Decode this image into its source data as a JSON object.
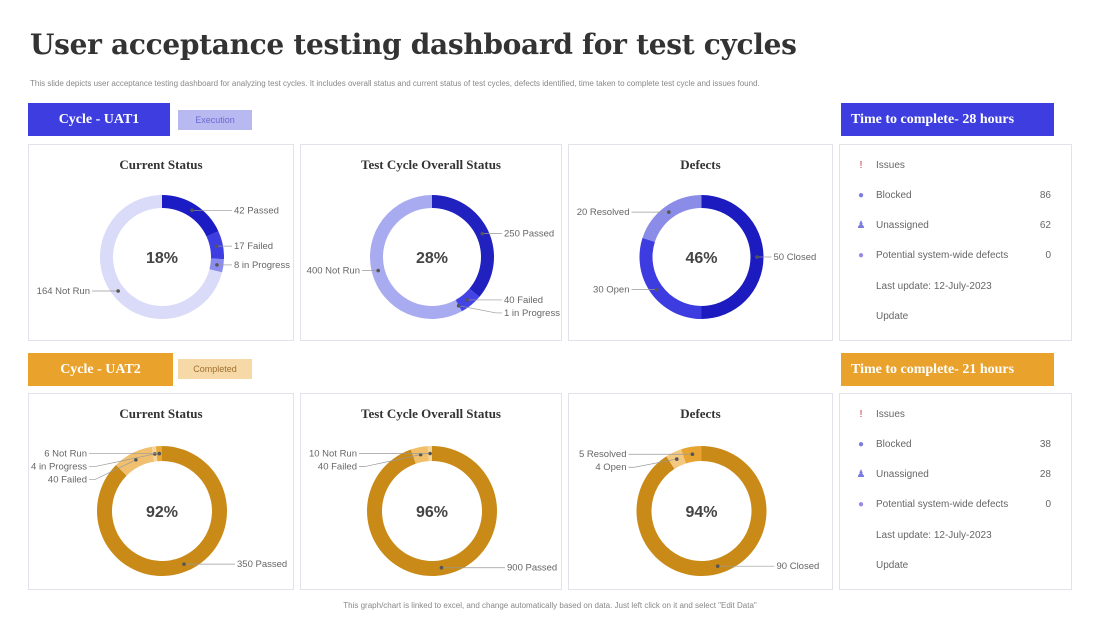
{
  "title": "User acceptance testing dashboard for test cycles",
  "subtitle": "This slide depicts user acceptance testing dashboard for analyzing test cycles. It includes overall status and current status of test cycles, defects identified, time taken to complete test cycle and issues found.",
  "footer": "This graph/chart is linked to excel, and change automatically based on data. Just left click on it and select \"Edit Data\"",
  "colors": {
    "blue": "#3e3ee0",
    "blue_badge": "#b9b9f2",
    "orange": "#e9a22c",
    "orange_badge": "#f6d9a6"
  },
  "cycles": [
    {
      "label": "Cycle - UAT1",
      "status": "Execution",
      "time": "Time to complete- 28 hours",
      "issues": {
        "header": "Issues",
        "rows": [
          {
            "icon": "blocked-icon",
            "label": "Blocked",
            "value": "86"
          },
          {
            "icon": "user-icon",
            "label": "Unassigned",
            "value": "62"
          },
          {
            "icon": "bug-icon",
            "label": "Potential system-wide defects",
            "value": "0"
          }
        ],
        "last_update": "Last update: 12-July-2023",
        "update": "Update"
      }
    },
    {
      "label": "Cycle - UAT2",
      "status": "Completed",
      "time": "Time to complete- 21 hours",
      "issues": {
        "header": "Issues",
        "rows": [
          {
            "icon": "blocked-icon",
            "label": "Blocked",
            "value": "38"
          },
          {
            "icon": "user-icon",
            "label": "Unassigned",
            "value": "28"
          },
          {
            "icon": "bug-icon",
            "label": "Potential system-wide defects",
            "value": "0"
          }
        ],
        "last_update": "Last update: 12-July-2023",
        "update": "Update"
      }
    }
  ],
  "chart_data": [
    {
      "type": "pie",
      "variant": "donut",
      "cycle": "Cycle - UAT1",
      "title": "Current Status",
      "center_label": "18%",
      "slices": [
        {
          "label": "42 Passed",
          "value": 42,
          "color": "#1c1cc4"
        },
        {
          "label": "17 Failed",
          "value": 17,
          "color": "#3d3de2"
        },
        {
          "label": "8 in Progress",
          "value": 8,
          "color": "#8a8cf0"
        },
        {
          "label": "164 Not Run",
          "value": 164,
          "color": "#d9dbf8"
        }
      ]
    },
    {
      "type": "pie",
      "variant": "donut",
      "cycle": "Cycle - UAT1",
      "title": "Test Cycle Overall Status",
      "center_label": "28%",
      "slices": [
        {
          "label": "250 Passed",
          "value": 250,
          "color": "#2121c0"
        },
        {
          "label": "40 Failed",
          "value": 40,
          "color": "#4343e6"
        },
        {
          "label": "1 in Progress",
          "value": 1,
          "color": "#6f70ea"
        },
        {
          "label": "400 Not Run",
          "value": 400,
          "color": "#a9abf0"
        }
      ]
    },
    {
      "type": "pie",
      "variant": "donut",
      "cycle": "Cycle - UAT1",
      "title": "Defects",
      "center_label": "46%",
      "slices": [
        {
          "label": "50 Closed",
          "value": 50,
          "color": "#1b1bbf"
        },
        {
          "label": "30 Open",
          "value": 30,
          "color": "#3c3ce0"
        },
        {
          "label": "20 Resolved",
          "value": 20,
          "color": "#8a8ce8"
        }
      ]
    },
    {
      "type": "pie",
      "variant": "donut",
      "cycle": "Cycle - UAT2",
      "title": "Current Status",
      "center_label": "92%",
      "slices": [
        {
          "label": "350 Passed",
          "value": 350,
          "color": "#c98a18"
        },
        {
          "label": "40 Failed",
          "value": 40,
          "color": "#f0c070"
        },
        {
          "label": "4 in Progress",
          "value": 4,
          "color": "#f5d69a"
        },
        {
          "label": "6 Not Run",
          "value": 6,
          "color": "#e8a83a"
        }
      ]
    },
    {
      "type": "pie",
      "variant": "donut",
      "cycle": "Cycle - UAT2",
      "title": "Test Cycle Overall Status",
      "center_label": "96%",
      "slices": [
        {
          "label": "900 Passed",
          "value": 900,
          "color": "#c98a18"
        },
        {
          "label": "40 Failed",
          "value": 40,
          "color": "#f0bf6a"
        },
        {
          "label": "10 Not Run",
          "value": 10,
          "color": "#f5d69a"
        }
      ]
    },
    {
      "type": "pie",
      "variant": "donut",
      "cycle": "Cycle - UAT2",
      "title": "Defects",
      "center_label": "94%",
      "slices": [
        {
          "label": "90 Closed",
          "value": 90,
          "color": "#c98a18"
        },
        {
          "label": "4 Open",
          "value": 4,
          "color": "#f3c880"
        },
        {
          "label": "5 Resolved",
          "value": 5,
          "color": "#e8a432"
        }
      ]
    }
  ]
}
